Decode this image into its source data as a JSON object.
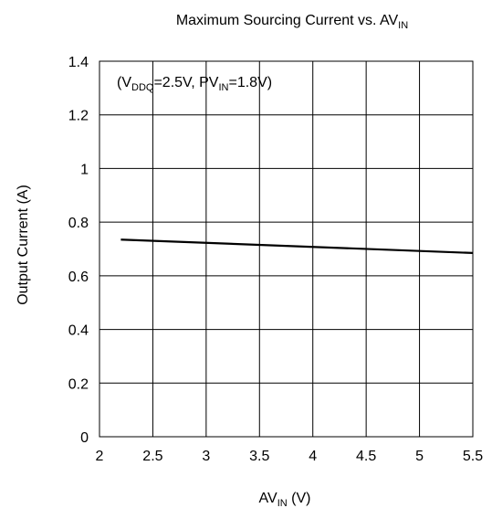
{
  "chart_data": {
    "type": "line",
    "title": {
      "main": "Maximum Sourcing Current vs. AV",
      "sub": "IN"
    },
    "xlabel": {
      "main": "AV",
      "sub": "IN",
      "unit": " (V)"
    },
    "ylabel": "Output Current (A)",
    "xlim": [
      2,
      5.5
    ],
    "ylim": [
      0,
      1.4
    ],
    "xticks": [
      "2",
      "2.5",
      "3",
      "3.5",
      "4",
      "4.5",
      "5",
      "5.5"
    ],
    "yticks": [
      "0",
      "0.2",
      "0.4",
      "0.6",
      "0.8",
      "1",
      "1.2",
      "1.4"
    ],
    "grid": true,
    "annotation": {
      "part1": "(V",
      "sub1": "DDQ",
      "part2": "=2.5V, PV",
      "sub2": "IN",
      "part3": "=1.8V)"
    },
    "series": [
      {
        "x": [
          2.2,
          5.5
        ],
        "y": [
          0.735,
          0.685
        ]
      }
    ]
  }
}
